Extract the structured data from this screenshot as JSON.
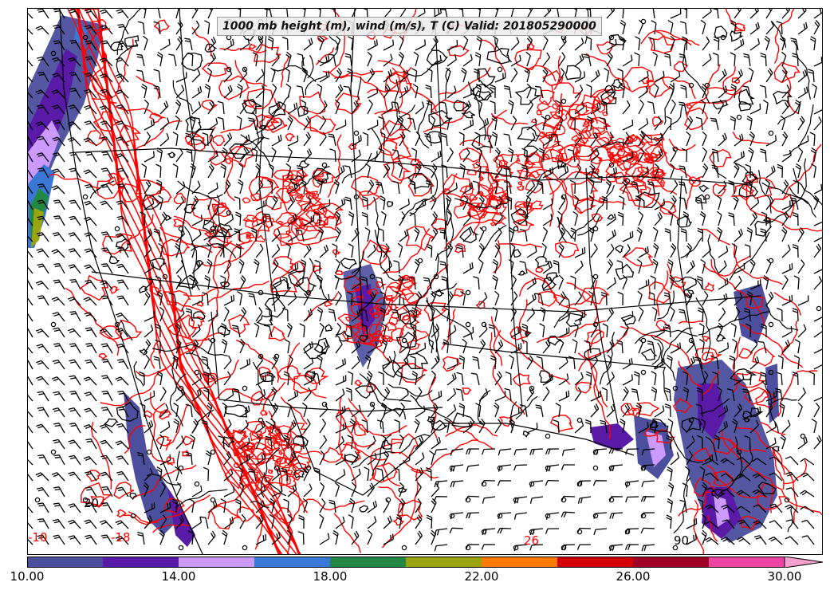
{
  "title": "1000 mb height (m), wind (m/s), T (C) Valid: 201805290000",
  "colorbar": {
    "min": 10,
    "max": 30,
    "step": 2,
    "extend": "max",
    "colors": [
      "#4b4f9e",
      "#5a1aa8",
      "#cc99ff",
      "#3a78d8",
      "#228844",
      "#99a40f",
      "#ff7a00",
      "#d40000",
      "#a00026",
      "#ee44a4"
    ],
    "extend_color": "#f5a0cf",
    "tick_labels": [
      "10.00",
      "14.00",
      "18.00",
      "22.00",
      "26.00",
      "30.00"
    ],
    "tick_values": [
      10,
      14,
      18,
      22,
      26,
      30
    ]
  },
  "contour_labels": [
    {
      "text": "90",
      "color": "#000000"
    },
    {
      "text": "-10",
      "color": "#ff0000"
    },
    {
      "text": "-18",
      "color": "#ff0000"
    },
    {
      "text": "26",
      "color": "#ff0000"
    },
    {
      "text": "20",
      "color": "#000000"
    }
  ],
  "layers": {
    "height_contours_color": "#000000",
    "temperature_contours_color": "#ff0000",
    "wind_barbs_color": "#000000",
    "wind_speed_fill": "shaded"
  }
}
